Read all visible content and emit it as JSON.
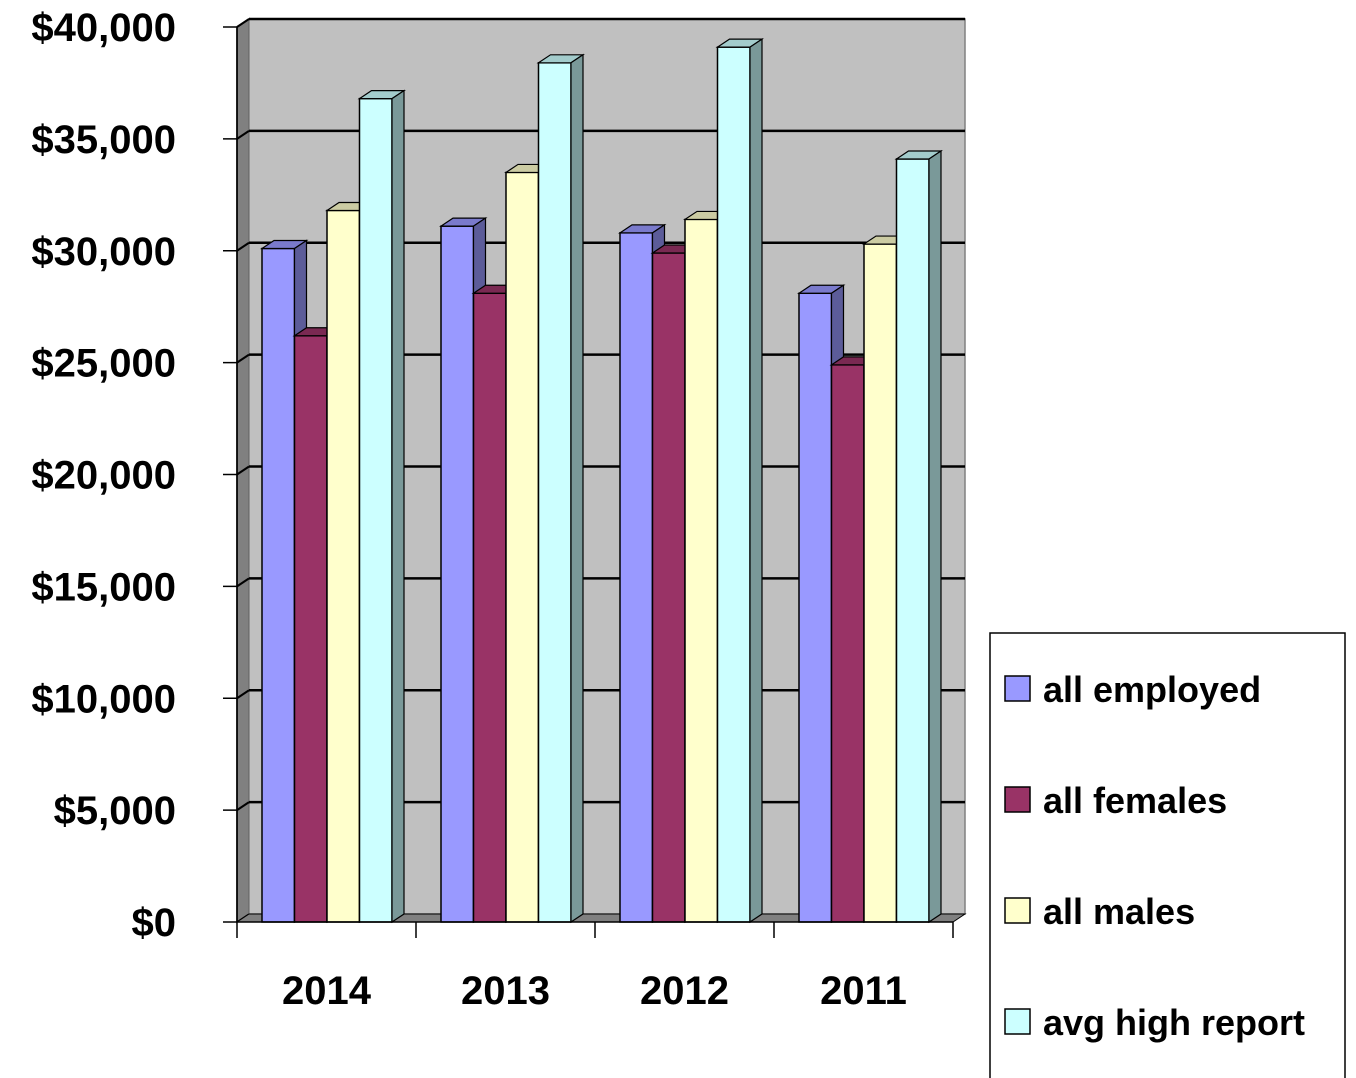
{
  "chart_data": {
    "type": "bar",
    "categories": [
      "2014",
      "2013",
      "2012",
      "2011"
    ],
    "series": [
      {
        "name": "all employed",
        "values": [
          30100,
          31100,
          30800,
          28100
        ],
        "color": "#9999ff"
      },
      {
        "name": "all females",
        "values": [
          26200,
          28100,
          29900,
          24900
        ],
        "color": "#993366"
      },
      {
        "name": "all males",
        "values": [
          31800,
          33500,
          31400,
          30300
        ],
        "color": "#ffffcc"
      },
      {
        "name": "avg high report",
        "values": [
          36800,
          38400,
          39100,
          34100
        ],
        "color": "#ccffff"
      }
    ],
    "ylim": [
      0,
      40000
    ],
    "yticks": [
      "$0",
      "$5,000",
      "$10,000",
      "$15,000",
      "$20,000",
      "$25,000",
      "$30,000",
      "$35,000",
      "$40,000"
    ],
    "grid": true,
    "legend_position": "right",
    "plot_background": "#c0c0c0"
  }
}
